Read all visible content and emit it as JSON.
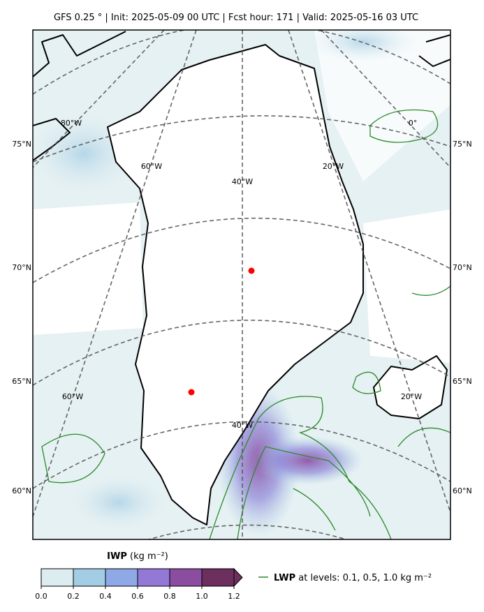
{
  "title": "GFS 0.25 °  |  Init: 2025-05-09 00 UTC  |  Fcst hour: 171  |  Valid: 2025-05-16 03 UTC",
  "map": {
    "lat_labels_left": [
      "75°N",
      "70°N",
      "65°N",
      "60°N"
    ],
    "lat_labels_right": [
      "75°N",
      "70°N",
      "65°N",
      "60°N"
    ],
    "lon_labels": [
      "80°W",
      "60°W",
      "40°W",
      "20°W",
      "0°",
      "60°W",
      "40°W",
      "20°W"
    ]
  },
  "colorbar": {
    "label": "IWP",
    "unit": "(kg m⁻²)",
    "lim": [
      0,
      1.2
    ],
    "ticks": [
      {
        "value": 0,
        "label": "0.0"
      },
      0.2,
      0.4,
      0.6,
      0.8,
      {
        "value": 1,
        "label": "1.0"
      },
      1.2
    ],
    "colors": [
      "#dcecf0",
      "#a3cde4",
      "#8fa9e6",
      "#9478d6",
      "#8a4d9f",
      "#6c2f5e"
    ]
  },
  "legend": {
    "name": "LWP",
    "text": "at levels: 0.1, 0.5, 1.0  kg m⁻²",
    "color": "#2a8a2a"
  }
}
